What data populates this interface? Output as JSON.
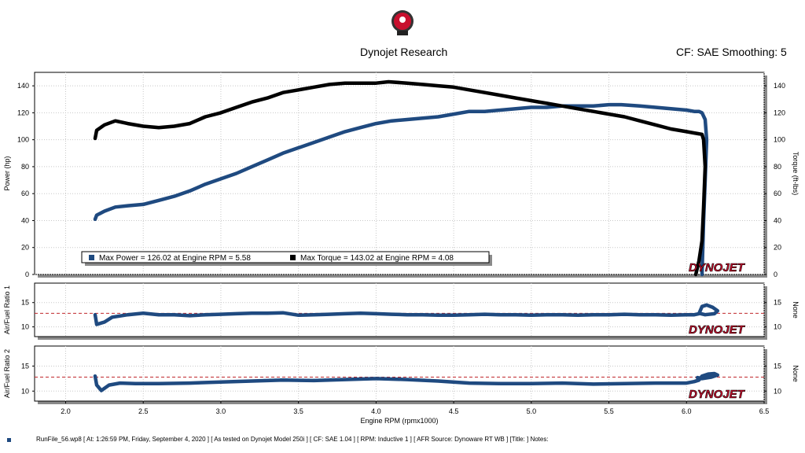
{
  "header": {
    "company": "Dynojet Research",
    "cf_smoothing": "CF: SAE Smoothing: 5"
  },
  "footer": {
    "text": "RunFile_56.wp8 [ At: 1:26:59 PM, Friday, September 4, 2020 ] [ As tested on Dynojet Model 250i ] [ CF: SAE 1.04 ] [ RPM: Inductive 1 ] [ AFR Source: Dynoware RT WB ] [Title: ] Notes:"
  },
  "colors": {
    "power": "#1f4a80",
    "torque": "#000000",
    "target_line": "#c0282d",
    "brand_red": "#c8102e"
  },
  "icons": {
    "logo": "dynojet-badge-icon",
    "brand": "dynojet-wordmark"
  },
  "chart_data": [
    {
      "type": "line",
      "ylabel": "Power (hp)",
      "y2label": "Torque (ft-lbs)",
      "xlim": [
        1.8,
        6.5
      ],
      "ylim": [
        0,
        150
      ],
      "y2lim": [
        0,
        150
      ],
      "yticks": [
        "0",
        "20",
        "40",
        "60",
        "80",
        "100",
        "120",
        "140"
      ],
      "grid": true,
      "legend": [
        {
          "text": "Max Power = 126.02 at Engine RPM = 5.58",
          "color": "#1f4a80"
        },
        {
          "text": "Max Torque = 143.02 at Engine RPM = 4.08",
          "color": "#000000"
        }
      ],
      "legend_position": "bottom-left",
      "brand": "DYNOJET",
      "series": [
        {
          "color": "#1f4a80",
          "x": [
            2.19,
            2.2,
            2.25,
            2.32,
            2.4,
            2.5,
            2.6,
            2.7,
            2.8,
            2.9,
            3.0,
            3.1,
            3.2,
            3.3,
            3.4,
            3.5,
            3.6,
            3.7,
            3.8,
            3.9,
            4.0,
            4.1,
            4.2,
            4.3,
            4.4,
            4.5,
            4.6,
            4.7,
            4.8,
            4.9,
            5.0,
            5.1,
            5.2,
            5.3,
            5.4,
            5.5,
            5.58,
            5.7,
            5.8,
            5.9,
            6.0,
            6.05,
            6.08,
            6.1,
            6.12,
            6.13,
            6.12,
            6.11,
            6.1
          ],
          "y": [
            41,
            44,
            47,
            50,
            51,
            52,
            55,
            58,
            62,
            67,
            71,
            75,
            80,
            85,
            90,
            94,
            98,
            102,
            106,
            109,
            112,
            114,
            115,
            116,
            117,
            119,
            121,
            121,
            122,
            123,
            124,
            124,
            125,
            125,
            125,
            126,
            126.02,
            125,
            124,
            123,
            122,
            121,
            121,
            120,
            115,
            100,
            70,
            40,
            0
          ]
        },
        {
          "color": "#000000",
          "x": [
            2.19,
            2.2,
            2.25,
            2.32,
            2.4,
            2.5,
            2.6,
            2.7,
            2.8,
            2.9,
            3.0,
            3.1,
            3.2,
            3.3,
            3.4,
            3.5,
            3.6,
            3.7,
            3.8,
            3.9,
            4.0,
            4.08,
            4.2,
            4.3,
            4.4,
            4.5,
            4.6,
            4.7,
            4.8,
            4.9,
            5.0,
            5.1,
            5.2,
            5.3,
            5.4,
            5.5,
            5.6,
            5.7,
            5.8,
            5.9,
            6.0,
            6.05,
            6.1,
            6.11,
            6.12,
            6.11,
            6.1,
            6.08,
            6.06
          ],
          "y": [
            101,
            107,
            111,
            114,
            112,
            110,
            109,
            110,
            112,
            117,
            120,
            124,
            128,
            131,
            135,
            137,
            139,
            141,
            142,
            142,
            142,
            143.02,
            142,
            141,
            140,
            139,
            137,
            135,
            133,
            131,
            129,
            127,
            125,
            123,
            121,
            119,
            117,
            114,
            111,
            108,
            106,
            105,
            104,
            100,
            80,
            50,
            25,
            10,
            0
          ]
        }
      ]
    },
    {
      "type": "line",
      "ylabel": "Air/Fuel Ratio 1",
      "y2label": "None",
      "xlim": [
        1.8,
        6.5
      ],
      "ylim": [
        8,
        19
      ],
      "yticks": [
        "10",
        "15"
      ],
      "reference_line": 12.8,
      "grid": true,
      "brand": "DYNOJET",
      "series": [
        {
          "color": "#1f4a80",
          "x": [
            2.19,
            2.2,
            2.25,
            2.3,
            2.4,
            2.5,
            2.6,
            2.7,
            2.8,
            2.9,
            3.0,
            3.1,
            3.2,
            3.3,
            3.4,
            3.5,
            3.6,
            3.7,
            3.8,
            3.9,
            4.0,
            4.1,
            4.2,
            4.3,
            4.4,
            4.5,
            4.6,
            4.7,
            4.8,
            4.9,
            5.0,
            5.1,
            5.2,
            5.3,
            5.4,
            5.5,
            5.6,
            5.7,
            5.8,
            5.9,
            6.0,
            6.05,
            6.08,
            6.1,
            6.13,
            6.17,
            6.2,
            6.18,
            6.12,
            6.08
          ],
          "y": [
            12.5,
            10.5,
            11.0,
            12.0,
            12.5,
            12.8,
            12.5,
            12.5,
            12.3,
            12.5,
            12.6,
            12.7,
            12.8,
            12.8,
            12.9,
            12.4,
            12.5,
            12.6,
            12.7,
            12.8,
            12.7,
            12.6,
            12.5,
            12.5,
            12.4,
            12.4,
            12.5,
            12.6,
            12.5,
            12.5,
            12.4,
            12.5,
            12.5,
            12.4,
            12.5,
            12.5,
            12.6,
            12.5,
            12.5,
            12.4,
            12.5,
            12.5,
            12.7,
            14.2,
            14.5,
            14.0,
            13.3,
            12.7,
            12.5,
            12.8
          ]
        }
      ]
    },
    {
      "type": "line",
      "ylabel": "Air/Fuel Ratio 2",
      "y2label": "None",
      "xlim": [
        1.8,
        6.5
      ],
      "xlabel": "Engine RPM (rpmx1000)",
      "xticks": [
        "2.0",
        "2.5",
        "3.0",
        "3.5",
        "4.0",
        "4.5",
        "5.0",
        "5.5",
        "6.0",
        "6.5"
      ],
      "ylim": [
        8,
        19
      ],
      "yticks": [
        "10",
        "15"
      ],
      "reference_line": 12.8,
      "grid": true,
      "brand": "DYNOJET",
      "series": [
        {
          "color": "#1f4a80",
          "x": [
            2.19,
            2.2,
            2.23,
            2.28,
            2.35,
            2.45,
            2.6,
            2.8,
            3.0,
            3.2,
            3.4,
            3.6,
            3.8,
            4.0,
            4.2,
            4.4,
            4.6,
            4.8,
            5.0,
            5.2,
            5.4,
            5.6,
            5.8,
            6.0,
            6.05,
            6.08,
            6.1,
            6.14,
            6.18,
            6.2,
            6.16,
            6.1,
            6.07
          ],
          "y": [
            13.0,
            11.2,
            10.1,
            11.2,
            11.6,
            11.5,
            11.5,
            11.6,
            11.8,
            12.0,
            12.2,
            12.1,
            12.3,
            12.5,
            12.3,
            12.0,
            11.6,
            11.5,
            11.5,
            11.6,
            11.4,
            11.5,
            11.6,
            11.6,
            11.9,
            12.2,
            13.0,
            13.4,
            13.5,
            13.2,
            12.8,
            12.5,
            12.7
          ]
        }
      ]
    }
  ]
}
